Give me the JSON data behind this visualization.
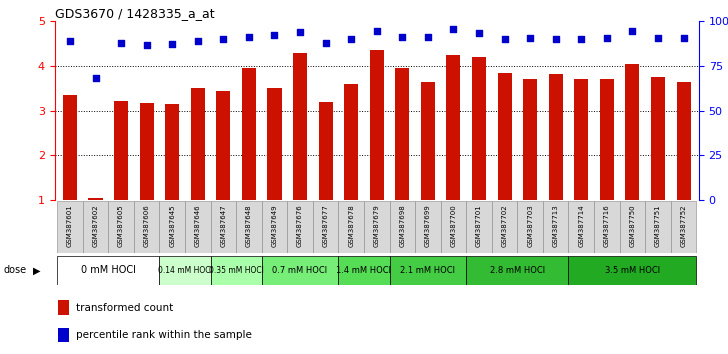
{
  "title": "GDS3670 / 1428335_a_at",
  "samples": [
    "GSM387601",
    "GSM387602",
    "GSM387605",
    "GSM387606",
    "GSM387645",
    "GSM387646",
    "GSM387647",
    "GSM387648",
    "GSM387649",
    "GSM387676",
    "GSM387677",
    "GSM387678",
    "GSM387679",
    "GSM387698",
    "GSM387699",
    "GSM387700",
    "GSM387701",
    "GSM387702",
    "GSM387703",
    "GSM387713",
    "GSM387714",
    "GSM387716",
    "GSM387750",
    "GSM387751",
    "GSM387752"
  ],
  "bar_values": [
    3.35,
    1.05,
    3.22,
    3.18,
    3.15,
    3.5,
    3.45,
    3.95,
    3.5,
    4.3,
    3.2,
    3.6,
    4.35,
    3.95,
    3.65,
    4.25,
    4.2,
    3.85,
    3.7,
    3.82,
    3.7,
    3.7,
    4.05,
    3.75,
    3.65
  ],
  "dot_values": [
    4.55,
    3.72,
    4.52,
    4.47,
    4.5,
    4.55,
    4.6,
    4.65,
    4.7,
    4.76,
    4.52,
    4.6,
    4.78,
    4.65,
    4.65,
    4.83,
    4.74,
    4.6,
    4.62,
    4.6,
    4.6,
    4.62,
    4.78,
    4.62,
    4.62
  ],
  "bar_color": "#cc1100",
  "dot_color": "#0000cc",
  "ylim": [
    1,
    5
  ],
  "yticks_left": [
    1,
    2,
    3,
    4,
    5
  ],
  "yticks_right": [
    0,
    25,
    50,
    75,
    100
  ],
  "dose_groups": [
    {
      "label": "0 mM HOCl",
      "start": 0,
      "end": 4,
      "color": "#ffffff"
    },
    {
      "label": "0.14 mM HOCl",
      "start": 4,
      "end": 6,
      "color": "#ccffcc"
    },
    {
      "label": "0.35 mM HOCl",
      "start": 6,
      "end": 8,
      "color": "#aaffaa"
    },
    {
      "label": "0.7 mM HOCl",
      "start": 8,
      "end": 11,
      "color": "#77ee77"
    },
    {
      "label": "1.4 mM HOCl",
      "start": 11,
      "end": 13,
      "color": "#55dd55"
    },
    {
      "label": "2.1 mM HOCl",
      "start": 13,
      "end": 16,
      "color": "#44cc44"
    },
    {
      "label": "2.8 mM HOCl",
      "start": 16,
      "end": 20,
      "color": "#33bb33"
    },
    {
      "label": "3.5 mM HOCl",
      "start": 20,
      "end": 25,
      "color": "#22aa22"
    }
  ],
  "legend_labels": [
    "transformed count",
    "percentile rank within the sample"
  ],
  "dose_label": "dose"
}
